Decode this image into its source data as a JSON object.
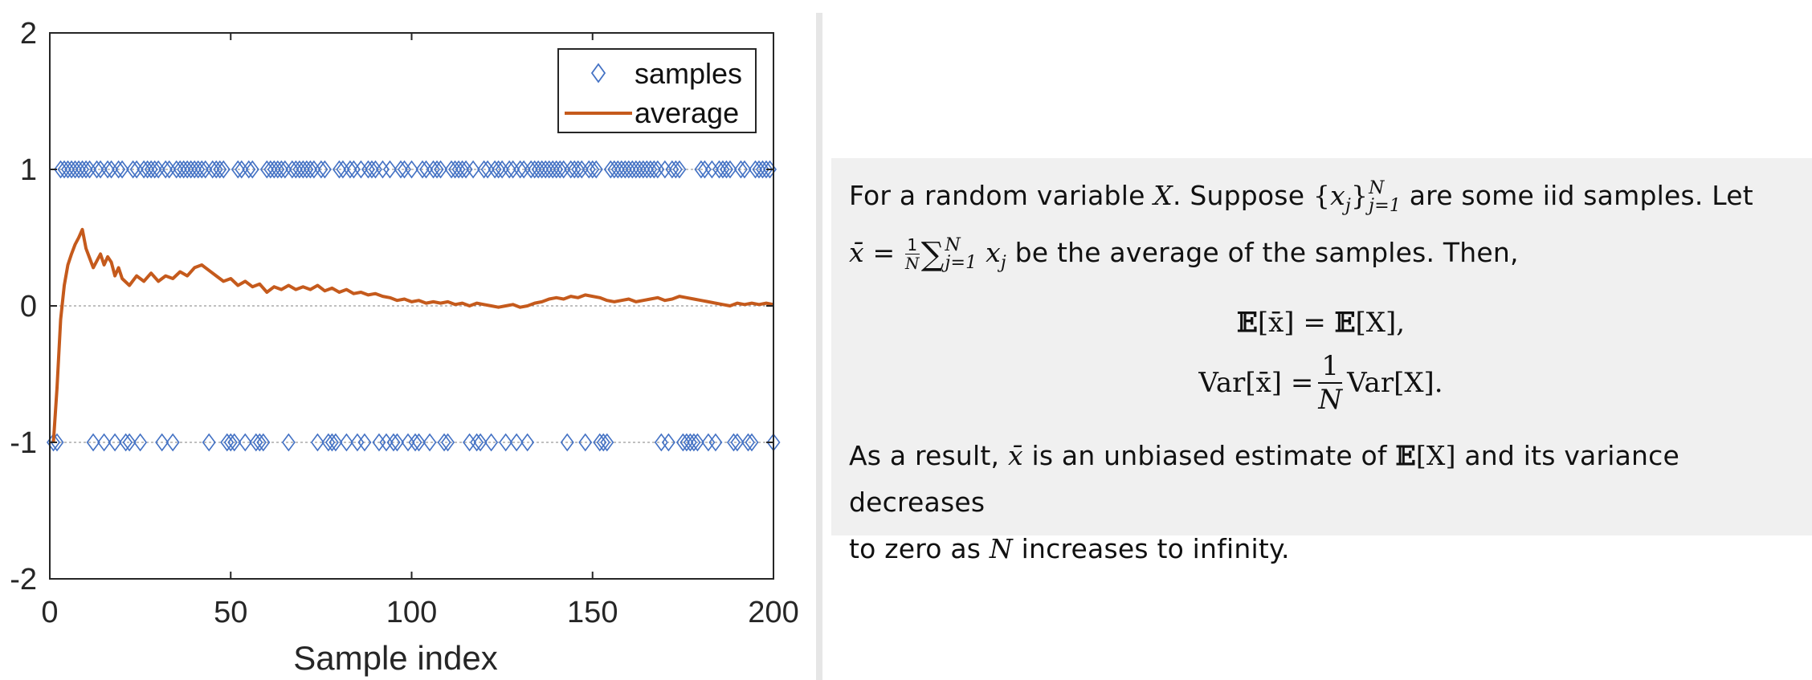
{
  "chart_data": {
    "type": "scatter",
    "xlabel": "Sample index",
    "ylabel": "",
    "xlim": [
      0,
      200
    ],
    "ylim": [
      -2,
      2
    ],
    "xticks": [
      "0",
      "50",
      "100",
      "150",
      "200"
    ],
    "yticks": [
      "-2",
      "-1",
      "0",
      "1",
      "2"
    ],
    "xtick_values": [
      0,
      50,
      100,
      150,
      200
    ],
    "ytick_values": [
      -2,
      -1,
      0,
      1,
      2
    ],
    "reference_lines": [
      -1,
      0,
      1
    ],
    "legend_position": "top-right",
    "series": [
      {
        "name": "samples",
        "marker": "diamond",
        "color": "#4472c4",
        "x_plus": [
          3,
          4,
          5,
          6,
          7,
          8,
          9,
          10,
          11,
          13,
          14,
          16,
          17,
          19,
          20,
          23,
          24,
          26,
          27,
          28,
          29,
          30,
          32,
          33,
          35,
          36,
          37,
          38,
          39,
          40,
          41,
          42,
          43,
          45,
          46,
          47,
          48,
          52,
          53,
          55,
          56,
          60,
          61,
          62,
          63,
          64,
          65,
          67,
          68,
          69,
          70,
          71,
          72,
          73,
          75,
          76,
          80,
          81,
          83,
          84,
          86,
          88,
          89,
          90,
          92,
          94,
          97,
          98,
          100,
          103,
          104,
          106,
          107,
          108,
          111,
          112,
          113,
          114,
          115,
          117,
          120,
          121,
          123,
          124,
          125,
          127,
          128,
          130,
          131,
          133,
          134,
          135,
          136,
          137,
          138,
          139,
          140,
          141,
          142,
          144,
          145,
          146,
          147,
          149,
          150,
          151,
          155,
          156,
          157,
          158,
          159,
          160,
          161,
          162,
          163,
          164,
          165,
          166,
          167,
          168,
          170,
          172,
          173,
          174,
          180,
          181,
          183,
          185,
          186,
          187,
          188,
          191,
          192,
          195,
          196,
          197,
          198,
          199
        ],
        "x_minus": [
          1,
          2,
          12,
          15,
          18,
          21,
          22,
          25,
          31,
          34,
          44,
          49,
          50,
          51,
          54,
          57,
          58,
          59,
          66,
          74,
          77,
          78,
          79,
          82,
          85,
          87,
          91,
          93,
          95,
          96,
          99,
          101,
          102,
          105,
          109,
          110,
          116,
          118,
          119,
          122,
          126,
          129,
          132,
          143,
          148,
          152,
          153,
          154,
          169,
          171,
          175,
          176,
          177,
          178,
          179,
          182,
          184,
          189,
          190,
          193,
          194,
          200
        ]
      },
      {
        "name": "average",
        "color": "#c55a1c",
        "x": [
          1,
          2,
          3,
          4,
          5,
          6,
          7,
          8,
          9,
          10,
          11,
          12,
          13,
          14,
          15,
          16,
          17,
          18,
          19,
          20,
          22,
          24,
          26,
          28,
          30,
          32,
          34,
          36,
          38,
          40,
          42,
          44,
          46,
          48,
          50,
          52,
          54,
          56,
          58,
          60,
          62,
          64,
          66,
          68,
          70,
          72,
          74,
          76,
          78,
          80,
          82,
          84,
          86,
          88,
          90,
          92,
          94,
          96,
          98,
          100,
          102,
          104,
          106,
          108,
          110,
          112,
          114,
          116,
          118,
          120,
          122,
          124,
          126,
          128,
          130,
          132,
          134,
          136,
          138,
          140,
          142,
          144,
          146,
          148,
          150,
          152,
          154,
          156,
          158,
          160,
          162,
          164,
          166,
          168,
          170,
          172,
          174,
          176,
          178,
          180,
          182,
          184,
          186,
          188,
          190,
          192,
          194,
          196,
          198,
          200
        ],
        "y": [
          -1.0,
          -0.6,
          -0.1,
          0.15,
          0.3,
          0.38,
          0.45,
          0.5,
          0.56,
          0.42,
          0.35,
          0.28,
          0.33,
          0.38,
          0.3,
          0.36,
          0.32,
          0.22,
          0.28,
          0.2,
          0.15,
          0.22,
          0.18,
          0.24,
          0.18,
          0.22,
          0.2,
          0.25,
          0.22,
          0.28,
          0.3,
          0.26,
          0.22,
          0.18,
          0.2,
          0.15,
          0.18,
          0.14,
          0.16,
          0.1,
          0.14,
          0.12,
          0.15,
          0.12,
          0.14,
          0.12,
          0.15,
          0.11,
          0.13,
          0.1,
          0.12,
          0.09,
          0.1,
          0.08,
          0.09,
          0.07,
          0.06,
          0.04,
          0.05,
          0.03,
          0.04,
          0.02,
          0.03,
          0.02,
          0.03,
          0.01,
          0.02,
          0.0,
          0.02,
          0.01,
          0.0,
          -0.01,
          0.0,
          0.01,
          -0.01,
          0.0,
          0.02,
          0.03,
          0.05,
          0.06,
          0.05,
          0.07,
          0.06,
          0.08,
          0.07,
          0.06,
          0.04,
          0.03,
          0.04,
          0.05,
          0.03,
          0.04,
          0.05,
          0.06,
          0.04,
          0.05,
          0.07,
          0.06,
          0.05,
          0.04,
          0.03,
          0.02,
          0.01,
          0.0,
          0.02,
          0.01,
          0.02,
          0.01,
          0.02,
          0.01
        ]
      }
    ]
  },
  "text_panel": {
    "p1_a": "For a random variable",
    "p1_X": "X",
    "p1_b": ". Suppose",
    "p1_set_open": "{",
    "p1_xj": "x",
    "p1_j": "j",
    "p1_set_close": "}",
    "p1_sup_N": "N",
    "p1_sub_j1": "j=1",
    "p1_c": "are some iid samples. Let",
    "p2_xbar": "x̄",
    "p2_eq": " = ",
    "p2_one": "1",
    "p2_N": "N",
    "p2_sigma": "∑",
    "p2_sup_N": "N",
    "p2_sub_j1": "j=1",
    "p2_xj": "x",
    "p2_j": "j",
    "p2_rest": "be the average of the samples. Then,",
    "eq1_lhs_E": "𝔼",
    "eq1_lhs": "[x̄] = ",
    "eq1_rhs_E": "𝔼",
    "eq1_rhs": "[X],",
    "eq2_lhs": "Var[x̄] = ",
    "eq2_num": "1",
    "eq2_den": "N",
    "eq2_rhs": "Var[X].",
    "p3_a": "As a result,",
    "p3_xbar": "x̄",
    "p3_b": "is an unbiased estimate of",
    "p3_E": "𝔼",
    "p3_EX": "[X]",
    "p3_c": "and its variance decreases",
    "p4_a": "to zero as",
    "p4_N": "N",
    "p4_b": "increases to infinity."
  }
}
